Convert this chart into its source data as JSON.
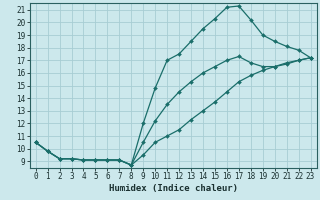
{
  "xlabel": "Humidex (Indice chaleur)",
  "bg_color": "#cce8ec",
  "grid_color": "#a8cdd4",
  "line_color": "#1a6e6a",
  "xlim": [
    -0.5,
    23.5
  ],
  "ylim": [
    8.5,
    21.5
  ],
  "xticks": [
    0,
    1,
    2,
    3,
    4,
    5,
    6,
    7,
    8,
    9,
    10,
    11,
    12,
    13,
    14,
    15,
    16,
    17,
    18,
    19,
    20,
    21,
    22,
    23
  ],
  "yticks": [
    9,
    10,
    11,
    12,
    13,
    14,
    15,
    16,
    17,
    18,
    19,
    20,
    21
  ],
  "line1_x": [
    0,
    1,
    2,
    3,
    4,
    5,
    6,
    7,
    8,
    9,
    10,
    11,
    12,
    13,
    14,
    15,
    16,
    17,
    18,
    19,
    20,
    21,
    22,
    23
  ],
  "line1_y": [
    10.5,
    9.8,
    9.2,
    9.2,
    9.1,
    9.1,
    9.1,
    9.1,
    8.7,
    9.5,
    10.5,
    11.0,
    11.5,
    12.3,
    13.0,
    13.7,
    14.5,
    15.3,
    15.8,
    16.2,
    16.5,
    16.8,
    17.0,
    17.2
  ],
  "line2_x": [
    0,
    1,
    2,
    3,
    4,
    5,
    6,
    7,
    8,
    9,
    10,
    11,
    12,
    13,
    14,
    15,
    16,
    17,
    18,
    19,
    20,
    21,
    22,
    23
  ],
  "line2_y": [
    10.5,
    9.8,
    9.2,
    9.2,
    9.1,
    9.1,
    9.1,
    9.1,
    8.7,
    12.0,
    14.8,
    17.0,
    17.5,
    18.5,
    19.5,
    20.3,
    21.2,
    21.3,
    20.2,
    19.0,
    18.5,
    18.1,
    17.8,
    17.2
  ],
  "line3_x": [
    0,
    1,
    2,
    3,
    4,
    5,
    6,
    7,
    8,
    9,
    10,
    11,
    12,
    13,
    14,
    15,
    16,
    17,
    18,
    19,
    20,
    21,
    22,
    23
  ],
  "line3_y": [
    10.5,
    9.8,
    9.2,
    9.2,
    9.1,
    9.1,
    9.1,
    9.1,
    8.7,
    10.5,
    12.2,
    13.5,
    14.5,
    15.3,
    16.0,
    16.5,
    17.0,
    17.3,
    16.8,
    16.5,
    16.5,
    16.7,
    17.0,
    17.2
  ]
}
